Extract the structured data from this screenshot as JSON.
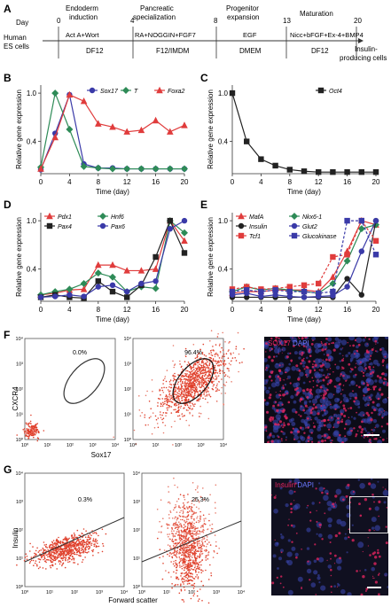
{
  "panel_labels": {
    "A": "A",
    "B": "B",
    "C": "C",
    "D": "D",
    "E": "E",
    "F": "F",
    "G": "G"
  },
  "timeline": {
    "day_label": "Day",
    "day_ticks": [
      "0",
      "4",
      "8",
      "13",
      "20"
    ],
    "stages": [
      "Endoderm induction",
      "Pancreatic specialization",
      "Progenitor expansion",
      "Maturation"
    ],
    "start_cells": "Human ES cells",
    "end_cells": "Insulin-producing cells",
    "factors": [
      "Act A+Wort",
      "RA+NOGGIN+FGF7",
      "EGF",
      "Nicc+bFGF+Ex-4+BMP4"
    ],
    "media": [
      "DF12",
      "F12/IMDM",
      "DMEM",
      "DF12"
    ]
  },
  "chart_data": [
    {
      "type": "line",
      "panel": "B",
      "xlabel": "Time (day)",
      "ylabel": "Relative gene expression",
      "x": [
        0,
        2,
        4,
        6,
        8,
        10,
        12,
        14,
        16,
        18,
        20
      ],
      "xticks": [
        "0",
        "4",
        "8",
        "12",
        "16",
        "20"
      ],
      "yticks": [
        "0.4",
        "1.0"
      ],
      "ylim": [
        0,
        1.1
      ],
      "series": [
        {
          "name": "Sox17",
          "color": "#3a3aa8",
          "marker": "circle",
          "values": [
            0.05,
            0.5,
            0.98,
            0.12,
            0.07,
            0.07,
            0.06,
            0.06,
            0.06,
            0.06,
            0.06
          ]
        },
        {
          "name": "T",
          "color": "#2e8b57",
          "marker": "diamond",
          "values": [
            0.08,
            1.0,
            0.55,
            0.09,
            0.07,
            0.06,
            0.06,
            0.06,
            0.06,
            0.06,
            0.06
          ]
        },
        {
          "name": "Foxa2",
          "color": "#e03c3c",
          "marker": "triangle",
          "values": [
            0.06,
            0.45,
            0.98,
            0.9,
            0.62,
            0.58,
            0.52,
            0.54,
            0.66,
            0.52,
            0.6
          ]
        }
      ]
    },
    {
      "type": "line",
      "panel": "C",
      "xlabel": "Time (day)",
      "ylabel": "Relative gene expression",
      "x": [
        0,
        2,
        4,
        6,
        8,
        10,
        12,
        14,
        16,
        18,
        20
      ],
      "xticks": [
        "0",
        "4",
        "8",
        "12",
        "16",
        "20"
      ],
      "yticks": [
        "0.4",
        "1.0"
      ],
      "ylim": [
        0,
        1.1
      ],
      "series": [
        {
          "name": "Oct4",
          "color": "#222222",
          "marker": "square",
          "values": [
            1.0,
            0.4,
            0.18,
            0.1,
            0.05,
            0.03,
            0.02,
            0.02,
            0.02,
            0.02,
            0.02
          ]
        }
      ]
    },
    {
      "type": "line",
      "panel": "D",
      "xlabel": "Time (day)",
      "ylabel": "Relative gene expression",
      "x": [
        0,
        2,
        4,
        6,
        8,
        10,
        12,
        14,
        16,
        18,
        20
      ],
      "xticks": [
        "0",
        "4",
        "8",
        "12",
        "16",
        "20"
      ],
      "yticks": [
        "0.4",
        "1.0"
      ],
      "ylim": [
        0,
        1.1
      ],
      "series": [
        {
          "name": "Pdx1",
          "color": "#e03c3c",
          "marker": "triangle",
          "values": [
            0.08,
            0.1,
            0.14,
            0.15,
            0.45,
            0.45,
            0.38,
            0.38,
            0.4,
            1.0,
            0.75
          ]
        },
        {
          "name": "Hnf6",
          "color": "#2e8b57",
          "marker": "diamond",
          "values": [
            0.08,
            0.12,
            0.15,
            0.22,
            0.35,
            0.3,
            0.12,
            0.18,
            0.16,
            1.0,
            0.85
          ]
        },
        {
          "name": "Pax4",
          "color": "#222222",
          "marker": "square",
          "values": [
            0.05,
            0.08,
            0.05,
            0.04,
            0.25,
            0.12,
            0.05,
            0.2,
            0.55,
            1.0,
            0.6
          ]
        },
        {
          "name": "Pax6",
          "color": "#3a3aa8",
          "marker": "circle",
          "values": [
            0.05,
            0.06,
            0.08,
            0.06,
            0.18,
            0.2,
            0.12,
            0.22,
            0.25,
            0.9,
            1.0
          ]
        }
      ]
    },
    {
      "type": "line",
      "panel": "E",
      "xlabel": "Time (day)",
      "ylabel": "Relative gene expression",
      "x": [
        0,
        2,
        4,
        6,
        8,
        10,
        12,
        14,
        16,
        18,
        20
      ],
      "xticks": [
        "0",
        "4",
        "8",
        "12",
        "16",
        "20"
      ],
      "yticks": [
        "0.4",
        "1.0"
      ],
      "ylim": [
        0,
        1.1
      ],
      "series": [
        {
          "name": "MafA",
          "color": "#e03c3c",
          "marker": "triangle",
          "values": [
            0.1,
            0.12,
            0.12,
            0.14,
            0.14,
            0.14,
            0.12,
            0.3,
            0.62,
            1.0,
            0.95
          ]
        },
        {
          "name": "Nkx6-1",
          "color": "#2e8b57",
          "marker": "diamond",
          "values": [
            0.12,
            0.18,
            0.14,
            0.16,
            0.14,
            0.12,
            0.1,
            0.22,
            0.5,
            0.9,
            0.95
          ]
        },
        {
          "name": "Insulin",
          "color": "#222222",
          "marker": "circle",
          "values": [
            0.05,
            0.05,
            0.05,
            0.05,
            0.05,
            0.05,
            0.05,
            0.05,
            0.28,
            0.08,
            1.0
          ]
        },
        {
          "name": "Glut2",
          "color": "#3a3aa8",
          "marker": "circle",
          "values": [
            0.08,
            0.1,
            0.06,
            0.08,
            0.06,
            0.05,
            0.06,
            0.07,
            0.18,
            0.62,
            1.0
          ]
        },
        {
          "name": "Tcf1",
          "color": "#e03c3c",
          "marker": "square",
          "values": [
            0.15,
            0.18,
            0.15,
            0.16,
            0.18,
            0.2,
            0.22,
            0.55,
            0.58,
            1.0,
            0.75
          ]
        },
        {
          "name": "Glucokinase",
          "color": "#3a3aa8",
          "marker": "square",
          "values": [
            0.12,
            0.14,
            0.12,
            0.14,
            0.12,
            0.12,
            0.1,
            0.12,
            1.0,
            1.0,
            0.58
          ]
        }
      ]
    }
  ],
  "flow_F": {
    "ylabel": "CXCR4",
    "xlabel": "Sox17",
    "plot1_percent": "0.0%",
    "plot2_percent": "96.4%",
    "ticks": [
      "10⁰",
      "10¹",
      "10²",
      "10³",
      "10⁴"
    ]
  },
  "flow_G": {
    "ylabel": "Insulin",
    "xlabel": "Forward scatter",
    "plot1_percent": "0.3%",
    "plot2_percent": "25.3%",
    "ticks": [
      "10⁰",
      "10¹",
      "10²",
      "10³",
      "10⁴"
    ]
  },
  "stain_F": {
    "marker": "SOX17",
    "counter": "DAPI",
    "marker_color": "#e0245e",
    "counter_color": "#4b57c8"
  },
  "stain_G": {
    "marker": "Insulin",
    "counter": "DAPI",
    "marker_color": "#e0245e",
    "counter_color": "#4b57c8"
  }
}
